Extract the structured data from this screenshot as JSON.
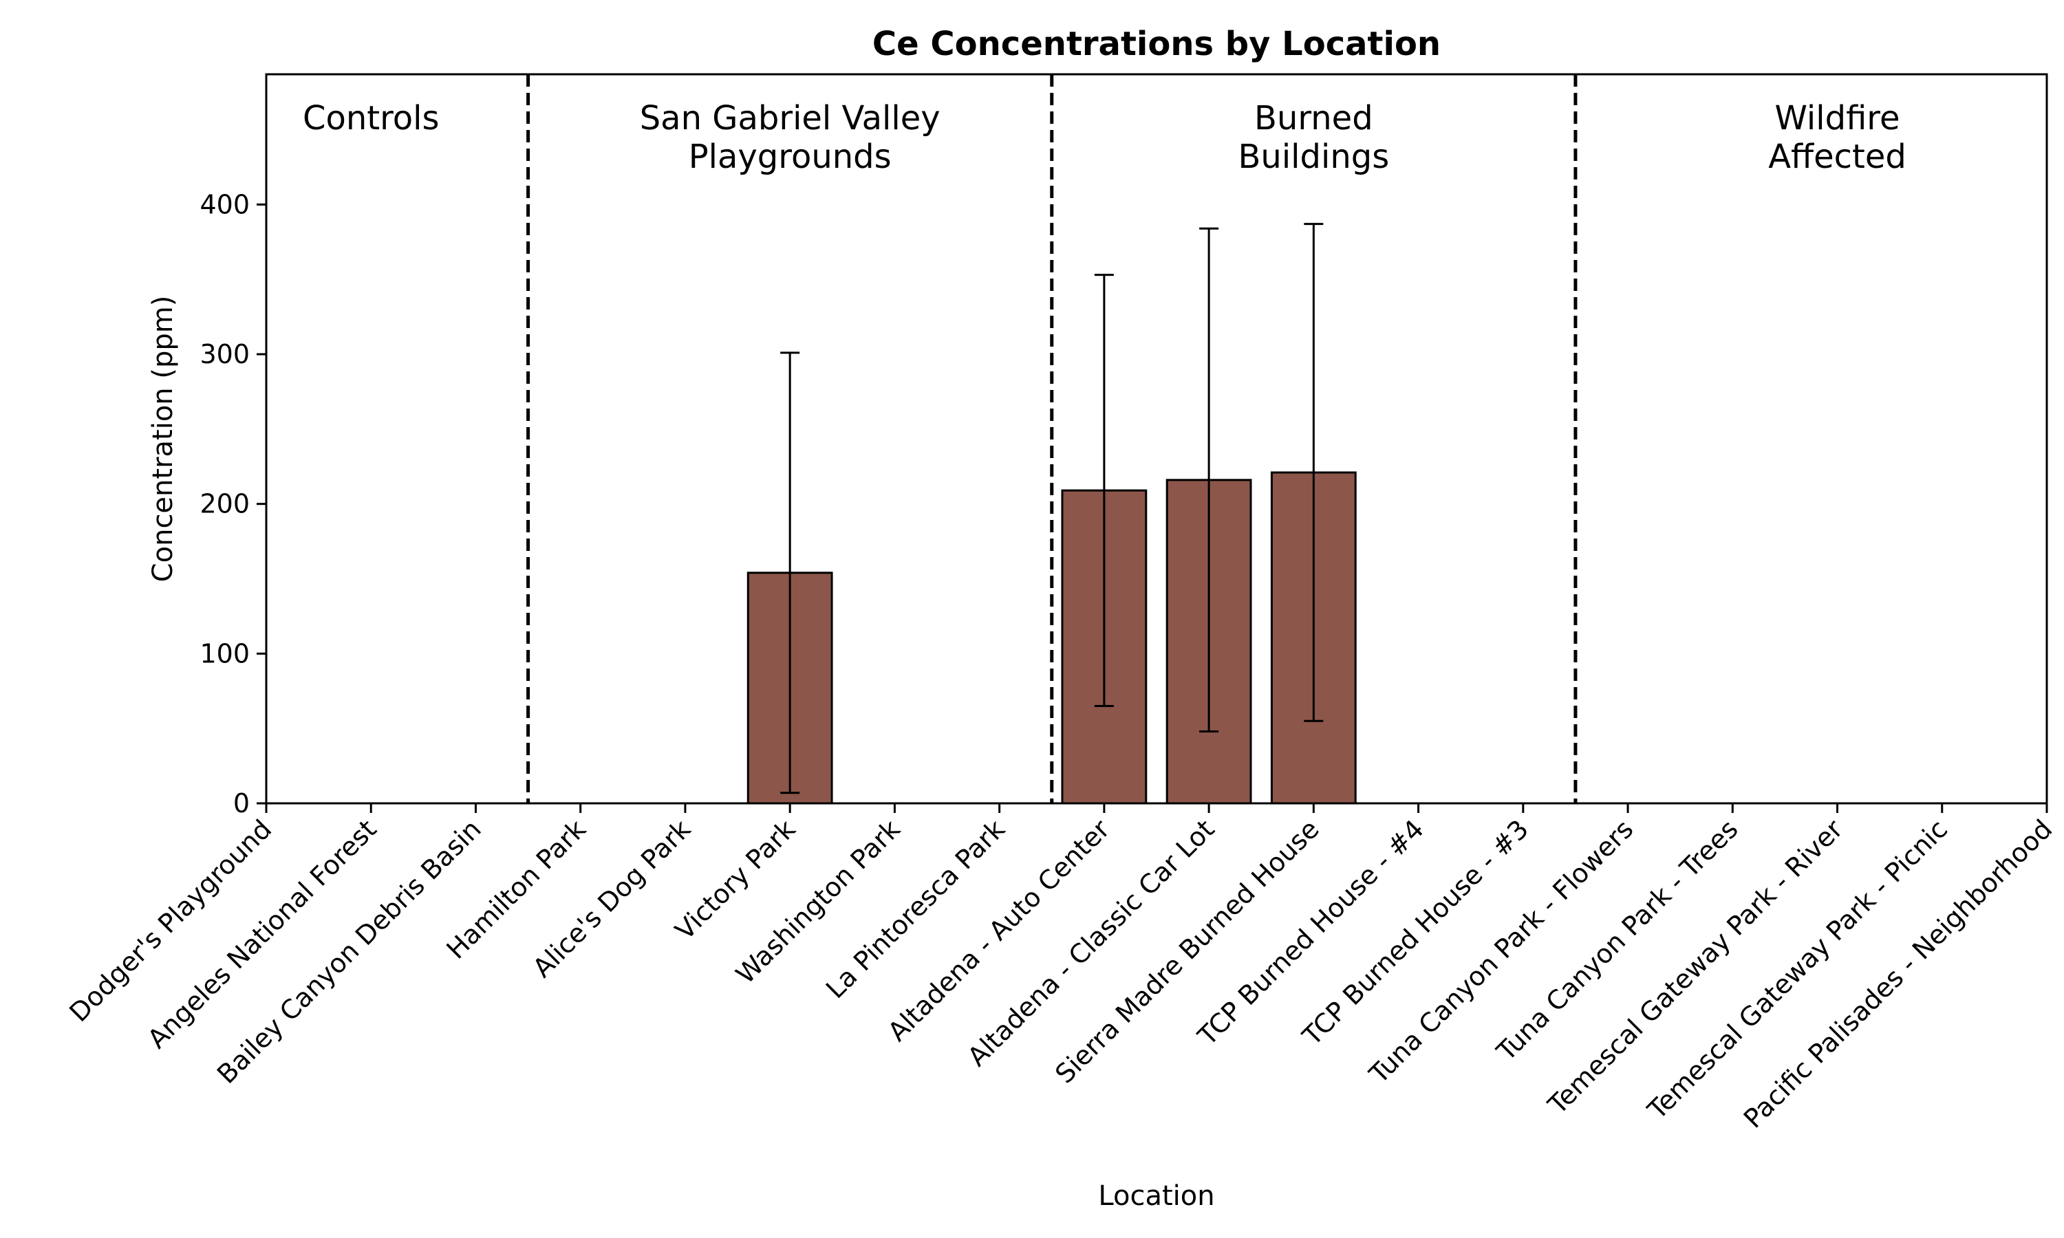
{
  "chart_data": {
    "type": "bar",
    "title": "Ce Concentrations by Location",
    "xlabel": "Location",
    "ylabel": "Concentration (ppm)",
    "ylim": [
      0,
      487
    ],
    "yticks": [
      0,
      100,
      200,
      300,
      400
    ],
    "grid": false,
    "bar_color": "#8c564b",
    "categories": [
      "Dodger's Playground",
      "Angeles National Forest",
      "Bailey Canyon Debris Basin",
      "Hamilton Park",
      "Alice's Dog Park",
      "Victory Park",
      "Washington Park",
      "La Pintoresca Park",
      "Altadena - Auto Center",
      "Altadena - Classic Car Lot",
      "Sierra Madre Burned House",
      "TCP Burned House - #4",
      "TCP Burned House - #3",
      "Tuna Canyon Park - Flowers",
      "Tuna Canyon Park - Trees",
      "Temescal Gateway Park - River",
      "Temescal Gateway Park - Picnic",
      "Pacific Palisades - Neighborhood"
    ],
    "values": [
      0,
      0,
      0,
      0,
      0,
      154,
      0,
      0,
      209,
      216,
      221,
      0,
      0,
      0,
      0,
      0,
      0,
      0
    ],
    "error": [
      0,
      0,
      0,
      0,
      0,
      147,
      0,
      0,
      144,
      168,
      166,
      0,
      0,
      0,
      0,
      0,
      0,
      0
    ],
    "groups": [
      {
        "label": "Controls",
        "start": 0,
        "end": 2
      },
      {
        "label": "San Gabriel Valley\nPlaygrounds",
        "start": 3,
        "end": 7
      },
      {
        "label": "Burned\nBuildings",
        "start": 8,
        "end": 12
      },
      {
        "label": "Wildfire\nAffected",
        "start": 13,
        "end": 17
      }
    ]
  }
}
